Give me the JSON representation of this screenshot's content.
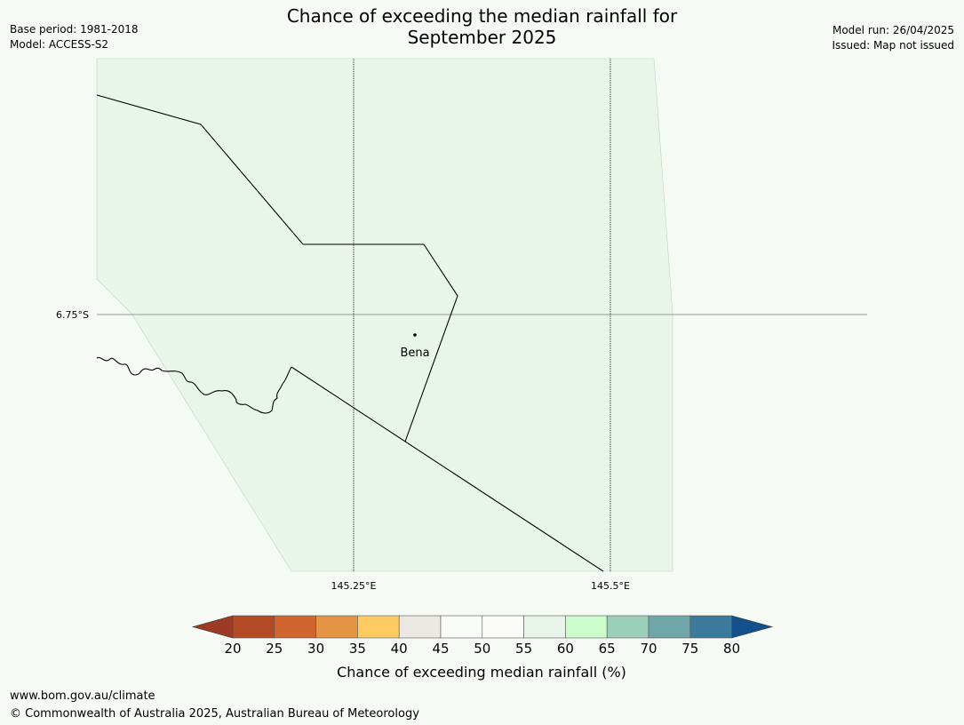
{
  "title_line1": "Chance of exceeding the median rainfall for",
  "title_line2": "September 2025",
  "meta_left": [
    "Base period: 1981-2018",
    "Model: ACCESS-S2"
  ],
  "meta_right": [
    "Model run: 26/04/2025",
    "Issued: Map not issued"
  ],
  "map": {
    "lat_label": "6.75°S",
    "lon_labels": [
      "145.25°E",
      "145.5°E"
    ],
    "place": "Bena"
  },
  "colorbar": {
    "title": "Chance of exceeding median rainfall (%)",
    "ticks": [
      "20",
      "25",
      "30",
      "35",
      "40",
      "45",
      "50",
      "55",
      "60",
      "65",
      "70",
      "75",
      "80"
    ],
    "low_color": "#9c3a25",
    "high_color": "#13508c",
    "colors": [
      "#b24b25",
      "#d0652f",
      "#e39444",
      "#fecb60",
      "#ece8e4",
      "#f9fbf9",
      "#fbfcfa",
      "#e9f5ea",
      "#ccfbcc",
      "#9ccfba",
      "#70a6a8",
      "#3c7a9c"
    ]
  },
  "footer": [
    "www.bom.gov.au/climate",
    "© Commonwealth of Australia 2025, Australian Bureau of Meteorology"
  ]
}
